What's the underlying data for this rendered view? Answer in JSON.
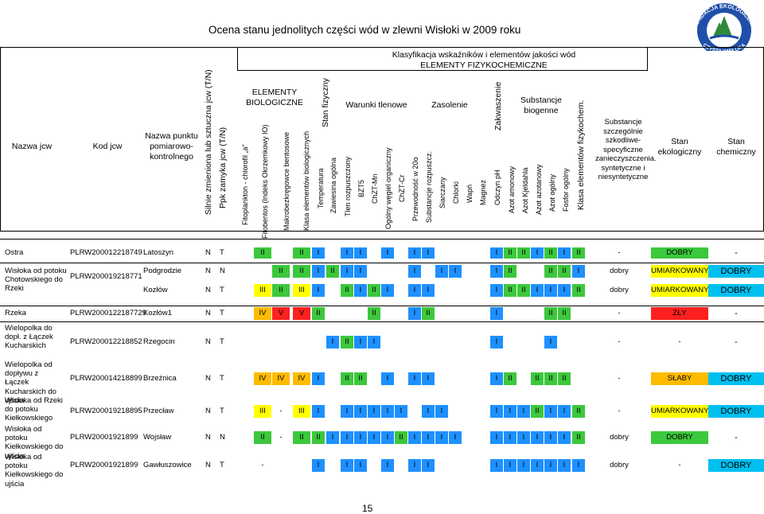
{
  "title": "Ocena stanu jednolitych części wód w zlewni Wisłoki w 2009 roku",
  "logo": {
    "top_text": "FUNDACJA EKOLOGICZNA",
    "bottom_text": "CZYSTA WISŁOKA",
    "colors": {
      "blue": "#1f4fa8",
      "green": "#2e8a3a"
    }
  },
  "headers": {
    "klasyfikacja": "Klasyfikacja wskaźników i elementów jakości wód",
    "fizykochem": "ELEMENTY FIZYKOCHEMICZNE",
    "nazwa_jcw": "Nazwa jcw",
    "kod_jcw": "Kod jcw",
    "nazwa_punktu": "Nazwa punktu pomiarowo-kontrolnego",
    "silnie": "Silnie zmieniona lub sztuczna jcw (T/N)",
    "ppk": "Ppk zamyka jcw (T/N)",
    "biologiczne": "ELEMENTY BIOLOGICZNE",
    "fitoplankton": "Fitoplankton - chlorofil „a\"",
    "fitobentos": "Fitobentos (Indeks Okrzemkowy IO)",
    "makro": "Makrobezkręgowce bentosowe",
    "klasa_bio": "Klasa elementów biologicznych",
    "stan_fizyczny": "Stan fizyczny",
    "temperatura": "Temperatura",
    "zawiesina": "Zawiesina ogólna",
    "warunki": "Warunki tlenowe",
    "tlen": "Tlen rozpuszczony",
    "bzt5": "BZT5",
    "chzt_mn": "ChZT-Mn",
    "ogolny_wegiel": "Ogólny węgiel organiczny",
    "chzt_cr": "ChZT-Cr",
    "zasolenie": "Zasolenie",
    "przewodnosc": "Przewodność w 20o",
    "substancje_rozp": "Substancje rozpuszcz.",
    "siarczany": "Siarczany",
    "chlorki": "Chlorki",
    "wapn": "Wapń",
    "magnez": "Magnez",
    "zakwaszenie": "Zakwaszenie",
    "odczyn": "Odczyn pH",
    "biogenne": "Substancje biogenne",
    "azot_amonowy": "Azot amonowy",
    "azot_kjeldahla": "Azot Kjeldahla",
    "azot_azotanowy": "Azot azotanowy",
    "azot_ogolny": "Azot ogólny",
    "fosfor": "Fosfor ogólny",
    "klasa_fiz": "Klasa elementów fizykochem.",
    "szczegolnie": "Substancje szczególnie szkodliwe- specyficzne zanieczyszczenia. syntetyczne i niesyntetyczne",
    "stan_ekologiczny": "Stan ekologiczny",
    "stan_chemiczny": "Stan chemiczny"
  },
  "colors": {
    "blue": "#1e90ff",
    "green": "#3cc83c",
    "yellow": "#ffff00",
    "orange": "#ffbb00",
    "red": "#ff2020",
    "cyan": "#00c0f0"
  },
  "rows": [
    {
      "nazwa": "Ostra",
      "kod": "PLRW200012218749",
      "punkt": "Latoszyn",
      "s": "N",
      "p": "T",
      "cells": {
        "c5": "II",
        "c7": "II",
        "c8": "I",
        "c10": "I",
        "c11": "I",
        "c13": "I",
        "c15": "I",
        "c16": "I",
        "c21": "I",
        "c22": "II",
        "c23": "II",
        "c24": "I",
        "c25": "II",
        "c26": "I",
        "c27": "II",
        "c28": "-"
      },
      "eko": "DOBRY",
      "chem": "-"
    },
    {
      "nazwa": "Wisłoka od potoku Chotowskiego do Rzeki",
      "kod": "PLRW200019218771",
      "punkt": "Podgrodzie",
      "s": "N",
      "p": "N",
      "cells": {
        "c6": "II",
        "c7": "II",
        "c8": "I",
        "c9": "II",
        "c10": "I",
        "c11": "I",
        "c15": "I",
        "c17": "I",
        "c18": "I",
        "c21": "I",
        "c22": "II",
        "c25": "II",
        "c26": "II",
        "c27": "I",
        "c28": "dobry"
      },
      "eko": "UMIARKOWANY",
      "chem": "DOBRY"
    },
    {
      "nazwa": "",
      "kod": "",
      "punkt": "Kozłów",
      "s": "N",
      "p": "T",
      "cells": {
        "c5": "III",
        "c6": "II",
        "c7": "III",
        "c8": "I",
        "c10": "II",
        "c11": "I",
        "c12": "II",
        "c13": "I",
        "c15": "I",
        "c16": "I",
        "c21": "I",
        "c22": "II",
        "c23": "II",
        "c24": "I",
        "c25": "I",
        "c26": "I",
        "c27": "II",
        "c28": "dobry"
      },
      "eko": "UMIARKOWANY",
      "chem": "DOBRY"
    },
    {
      "nazwa": "Rzeka",
      "kod": "PLRW2000122187729",
      "punkt": "Kozłów1",
      "s": "N",
      "p": "T",
      "cells": {
        "c5": "IV",
        "c6": "V",
        "c7": "V",
        "c8": "II",
        "c12": "II",
        "c15": "I",
        "c16": "II",
        "c21": "I",
        "c25": "II",
        "c26": "II",
        "c28": "-"
      },
      "eko": "ZŁY",
      "chem": "-"
    },
    {
      "nazwa": "Wielopolka do dopł. z Łączek Kucharskich",
      "kod": "PLRW200012218852",
      "punkt": "Rzegocin",
      "s": "N",
      "p": "T",
      "cells": {
        "c9": "I",
        "c10": "II",
        "c11": "I",
        "c12": "I",
        "c21": "I",
        "c25": "I",
        "c28": "-"
      },
      "eko": "-",
      "chem": "-"
    },
    {
      "nazwa": "Wielopolka od dopływu z Łączek Kucharskich do ujścia",
      "kod": "PLRW200014218899",
      "punkt": "Brzeźnica",
      "s": "N",
      "p": "T",
      "cells": {
        "c5": "IV",
        "c6": "IV",
        "c7": "IV",
        "c8": "I",
        "c10": "II",
        "c11": "II",
        "c13": "I",
        "c15": "I",
        "c16": "I",
        "c21": "I",
        "c22": "II",
        "c24": "II",
        "c25": "II",
        "c26": "II",
        "c28": "-"
      },
      "eko": "SŁABY",
      "chem": "DOBRY"
    },
    {
      "nazwa": "Wisłoka od Rzeki do potoku Kiełkowskiego",
      "kod": "PLRW200019218895",
      "punkt": "Przecław",
      "s": "N",
      "p": "T",
      "cells": {
        "c5": "III",
        "c6": "-",
        "c7": "III",
        "c8": "I",
        "c10": "I",
        "c11": "I",
        "c12": "I",
        "c13": "I",
        "c14": "I",
        "c16": "I",
        "c17": "I",
        "c21": "I",
        "c22": "I",
        "c23": "I",
        "c24": "II",
        "c25": "I",
        "c26": "I",
        "c27": "II",
        "c28": "-"
      },
      "eko": "UMIARKOWANY",
      "chem": "DOBRY"
    },
    {
      "nazwa": "Wisłoka od potoku Kiełkowskiego do ujścia",
      "kod": "PLRW20001921899",
      "punkt": "Wojsław",
      "s": "N",
      "p": "N",
      "cells": {
        "c5": "II",
        "c6": "-",
        "c7": "II",
        "c8": "II",
        "c9": "I",
        "c10": "I",
        "c11": "I",
        "c12": "I",
        "c13": "I",
        "c14": "II",
        "c15": "I",
        "c16": "I",
        "c17": "I",
        "c18": "I",
        "c21": "I",
        "c22": "I",
        "c23": "I",
        "c24": "I",
        "c25": "I",
        "c26": "I",
        "c27": "II",
        "c28": "dobry"
      },
      "eko": "DOBRY",
      "chem": "-"
    },
    {
      "nazwa": "Wisłoka od potoku Kiełkowskiego do ujścia",
      "kod": "PLRW20001921899",
      "punkt": "Gawłuszowice",
      "s": "N",
      "p": "T",
      "cells": {
        "c5": "-",
        "c8": "I",
        "c10": "I",
        "c11": "I",
        "c13": "I",
        "c15": "I",
        "c16": "I",
        "c21": "I",
        "c22": "I",
        "c23": "I",
        "c24": "I",
        "c25": "I",
        "c26": "I",
        "c27": "I",
        "c28": "dobry"
      },
      "eko": "-",
      "chem": "DOBRY"
    }
  ],
  "page_number": "15"
}
